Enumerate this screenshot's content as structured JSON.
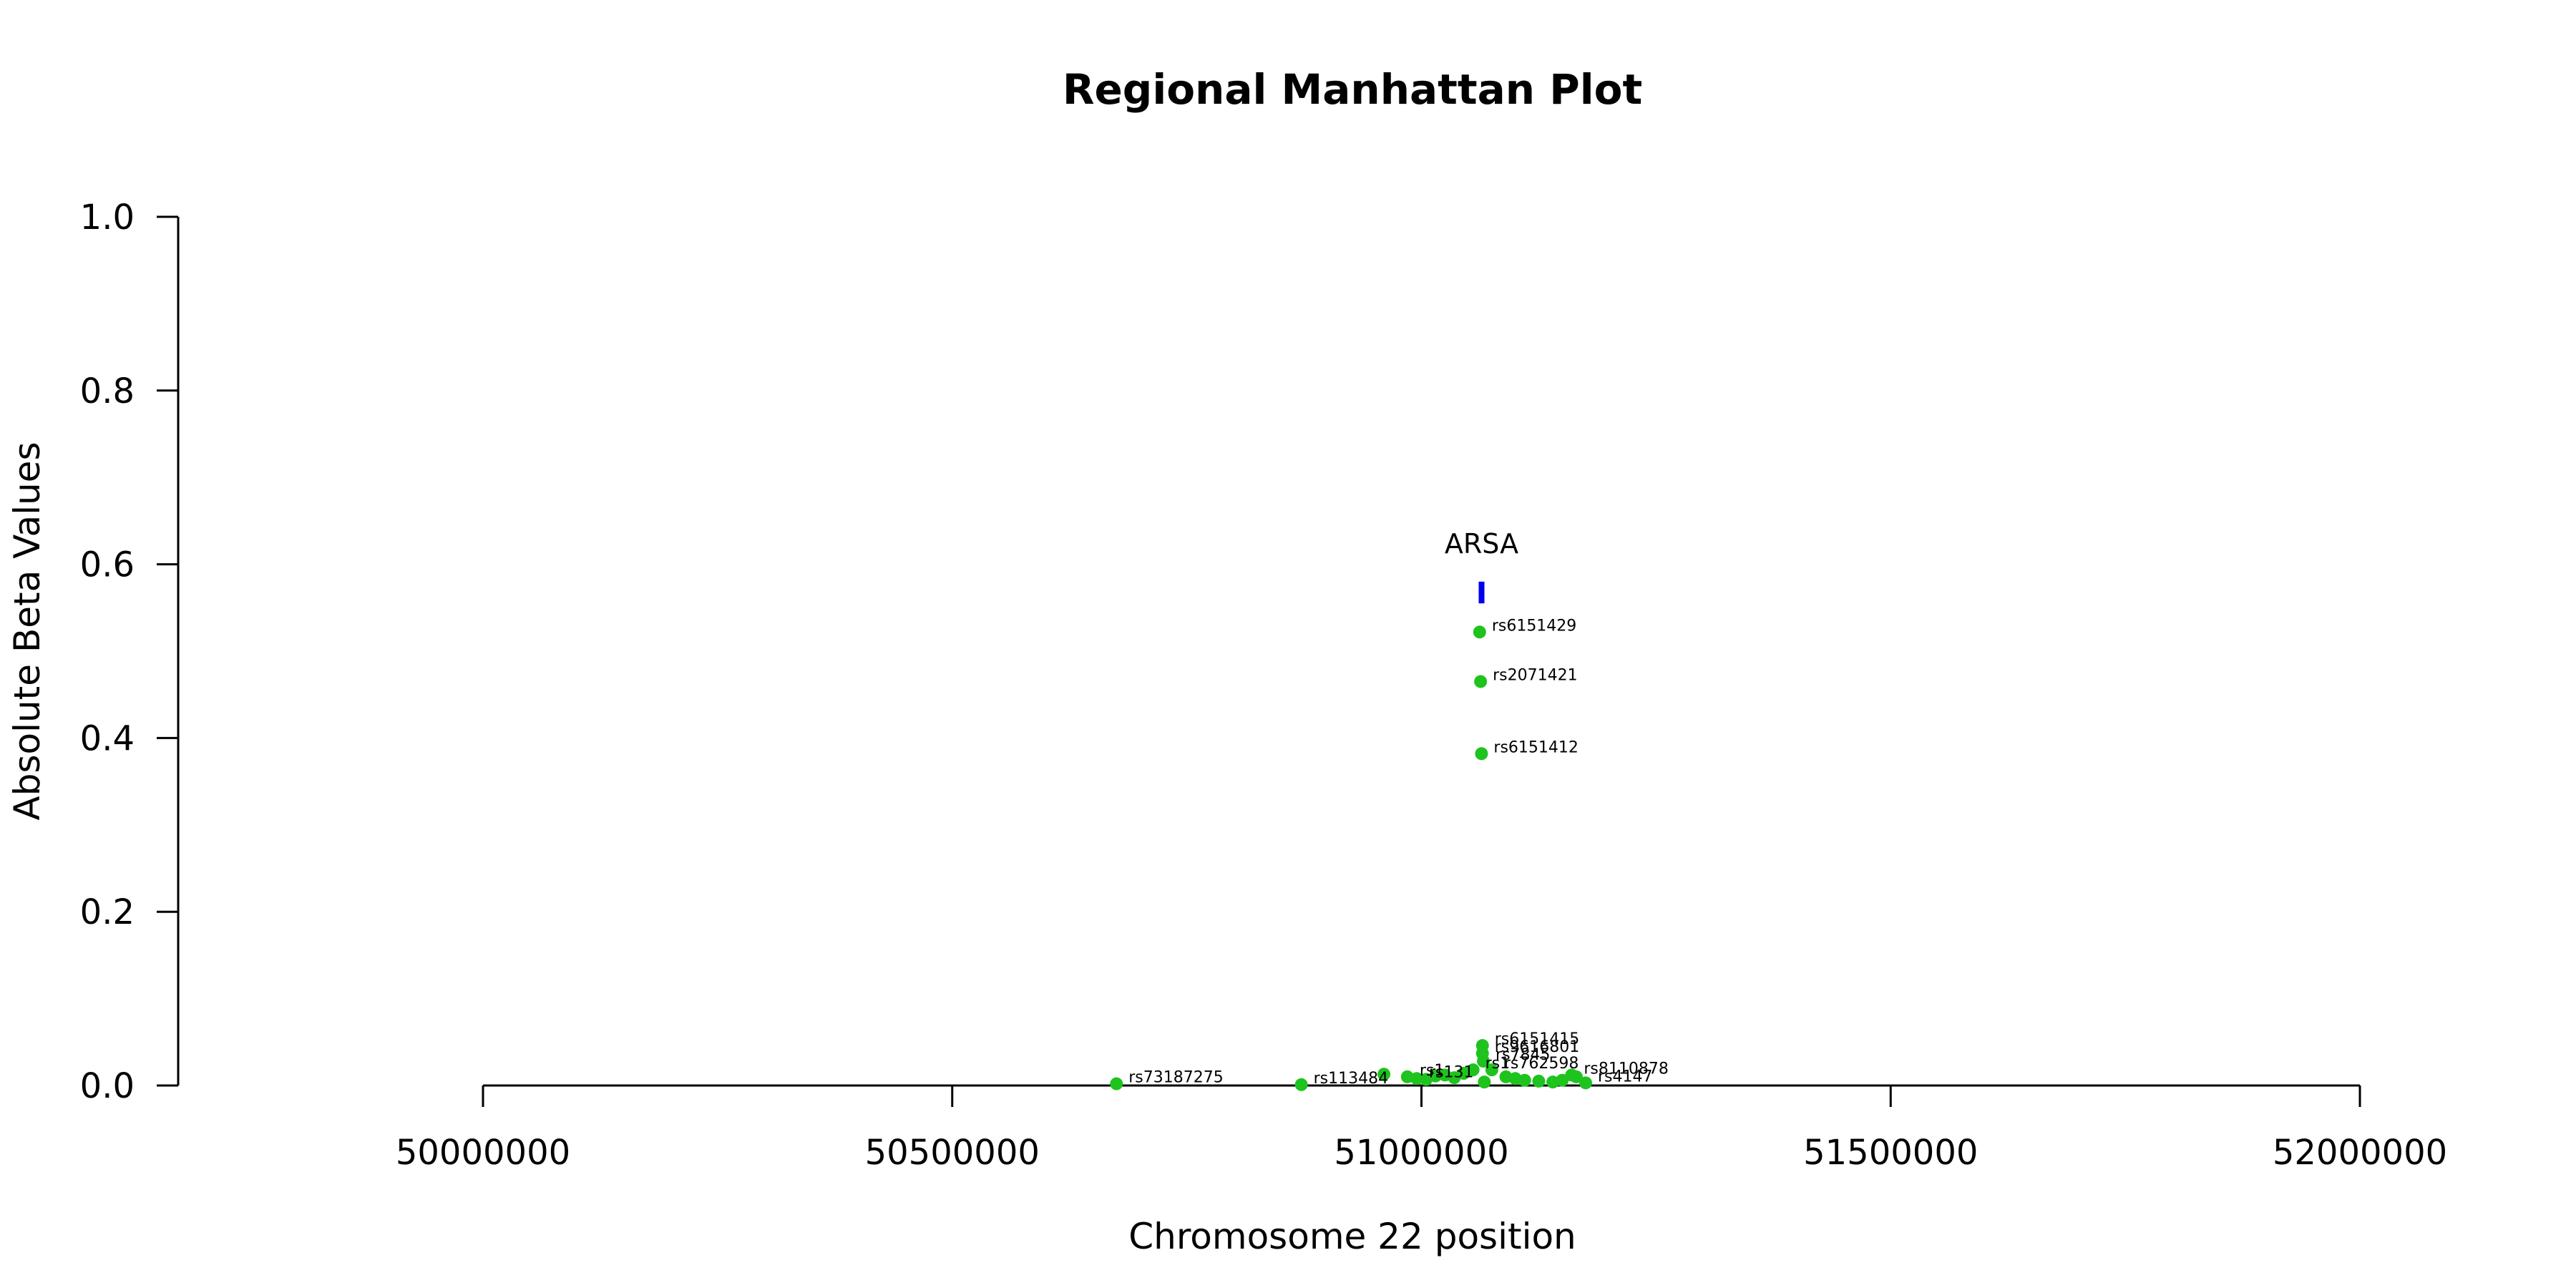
{
  "chart_data": {
    "type": "scatter",
    "title": "Regional Manhattan Plot",
    "xlabel": "Chromosome 22 position",
    "ylabel": "Absolute Beta Values",
    "xlim": [
      50000000,
      52000000
    ],
    "ylim": [
      0,
      1.0
    ],
    "x_ticks": [
      "50000000",
      "50500000",
      "51000000",
      "51500000",
      "52000000"
    ],
    "y_ticks": [
      "0.0",
      "0.2",
      "0.4",
      "0.6",
      "0.8",
      "1.0"
    ],
    "grid": false,
    "point_color": "#1ec31e",
    "gene_color": "#0000ee",
    "gene": {
      "name": "ARSA",
      "start": 51061000,
      "end": 51066000,
      "y_low": 0.555,
      "y_high": 0.58
    },
    "points": [
      {
        "x": 50675000,
        "y": 0.002,
        "label": "rs73187275"
      },
      {
        "x": 50872000,
        "y": 0.001,
        "label": "rs113484"
      },
      {
        "x": 50960000,
        "y": 0.013,
        "label": ""
      },
      {
        "x": 50985000,
        "y": 0.01,
        "label": "rs1"
      },
      {
        "x": 50995000,
        "y": 0.008,
        "label": "rs131"
      },
      {
        "x": 51005000,
        "y": 0.007,
        "label": ""
      },
      {
        "x": 51015000,
        "y": 0.011,
        "label": ""
      },
      {
        "x": 51025000,
        "y": 0.012,
        "label": ""
      },
      {
        "x": 51035000,
        "y": 0.009,
        "label": ""
      },
      {
        "x": 51045000,
        "y": 0.014,
        "label": ""
      },
      {
        "x": 51055000,
        "y": 0.018,
        "label": "rs1"
      },
      {
        "x": 51062000,
        "y": 0.522,
        "label": "rs6151429"
      },
      {
        "x": 51063000,
        "y": 0.465,
        "label": "rs2071421"
      },
      {
        "x": 51064000,
        "y": 0.382,
        "label": "rs6151412"
      },
      {
        "x": 51065000,
        "y": 0.046,
        "label": "rs6151415"
      },
      {
        "x": 51065000,
        "y": 0.037,
        "label": "rs9616801"
      },
      {
        "x": 51066000,
        "y": 0.028,
        "label": "rs7845"
      },
      {
        "x": 51067000,
        "y": 0.004,
        "label": ""
      },
      {
        "x": 51075000,
        "y": 0.018,
        "label": "rs762598"
      },
      {
        "x": 51090000,
        "y": 0.01,
        "label": ""
      },
      {
        "x": 51100000,
        "y": 0.008,
        "label": ""
      },
      {
        "x": 51110000,
        "y": 0.006,
        "label": ""
      },
      {
        "x": 51125000,
        "y": 0.005,
        "label": ""
      },
      {
        "x": 51140000,
        "y": 0.004,
        "label": ""
      },
      {
        "x": 51150000,
        "y": 0.006,
        "label": ""
      },
      {
        "x": 51160000,
        "y": 0.012,
        "label": "rs8110878"
      },
      {
        "x": 51165000,
        "y": 0.01,
        "label": ""
      },
      {
        "x": 51175000,
        "y": 0.003,
        "label": "rs4147"
      }
    ]
  }
}
